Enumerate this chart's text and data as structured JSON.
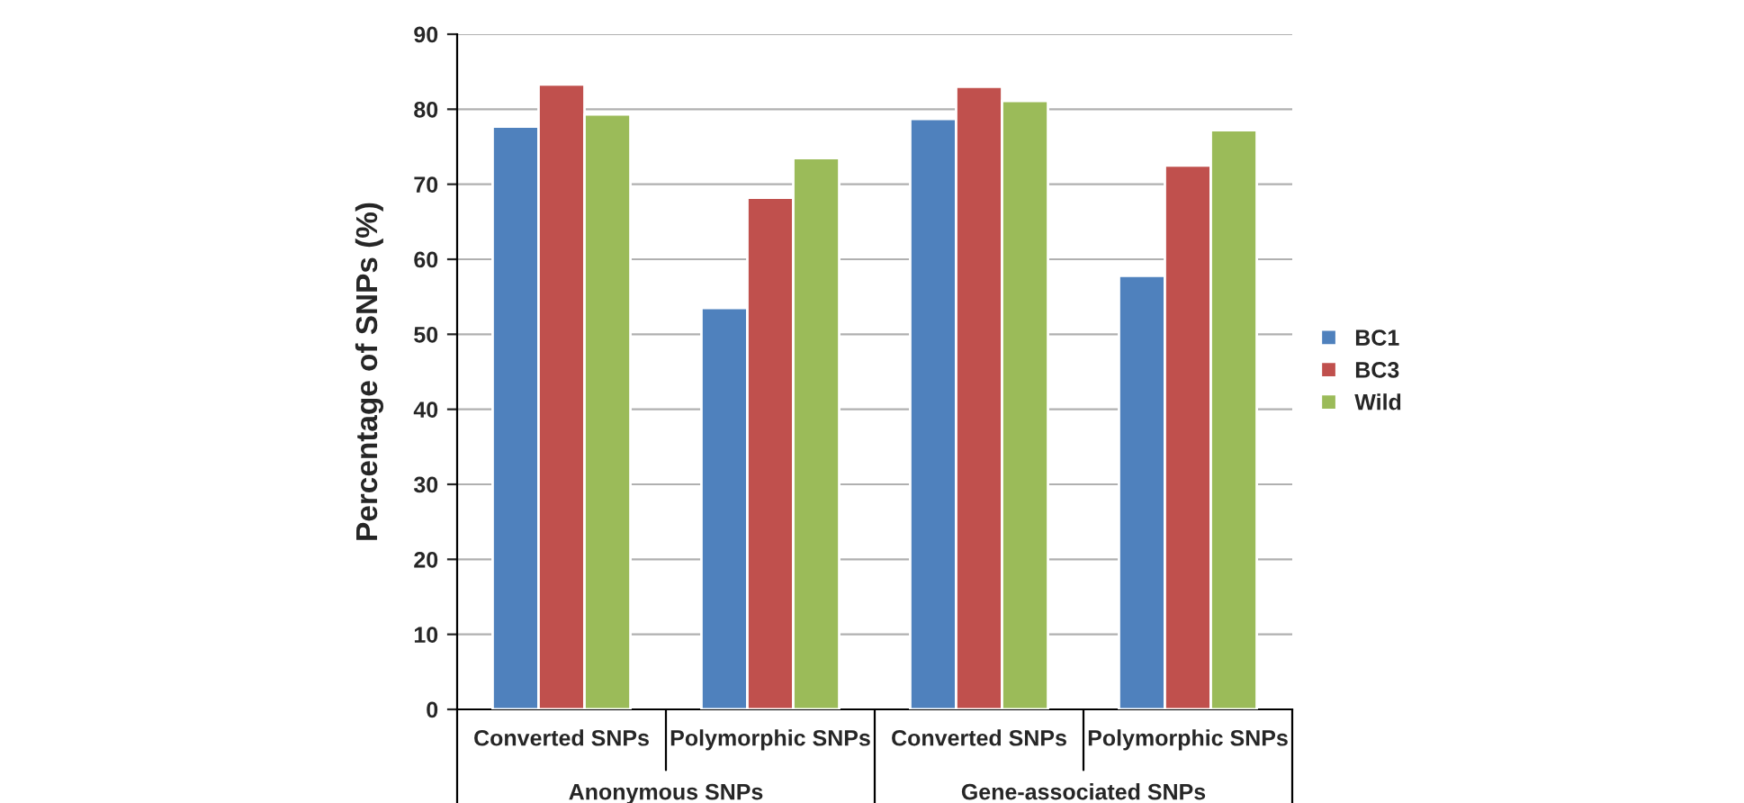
{
  "chart_data": {
    "type": "bar",
    "ylabel": "Percentage of SNPs (%)",
    "categories": [
      "Converted SNPs",
      "Polymorphic SNPs",
      "Converted SNPs",
      "Polymorphic SNPs"
    ],
    "series": [
      {
        "name": "BC1",
        "color": "#4f81bd",
        "values": [
          77.7,
          53.5,
          78.7,
          57.8
        ]
      },
      {
        "name": "BC3",
        "color": "#c0504d",
        "values": [
          83.3,
          68.2,
          83.0,
          72.5
        ]
      },
      {
        "name": "Wild",
        "color": "#9bbb59",
        "values": [
          79.3,
          73.5,
          81.1,
          77.2
        ]
      }
    ],
    "annotations": [
      "Anonymous SNPs",
      "Gene-associated SNPs"
    ],
    "ylim": [
      0,
      90
    ],
    "yticks": [
      0,
      10,
      20,
      30,
      40,
      50,
      60,
      70,
      80,
      90
    ],
    "grid": "y",
    "legend": "right"
  }
}
